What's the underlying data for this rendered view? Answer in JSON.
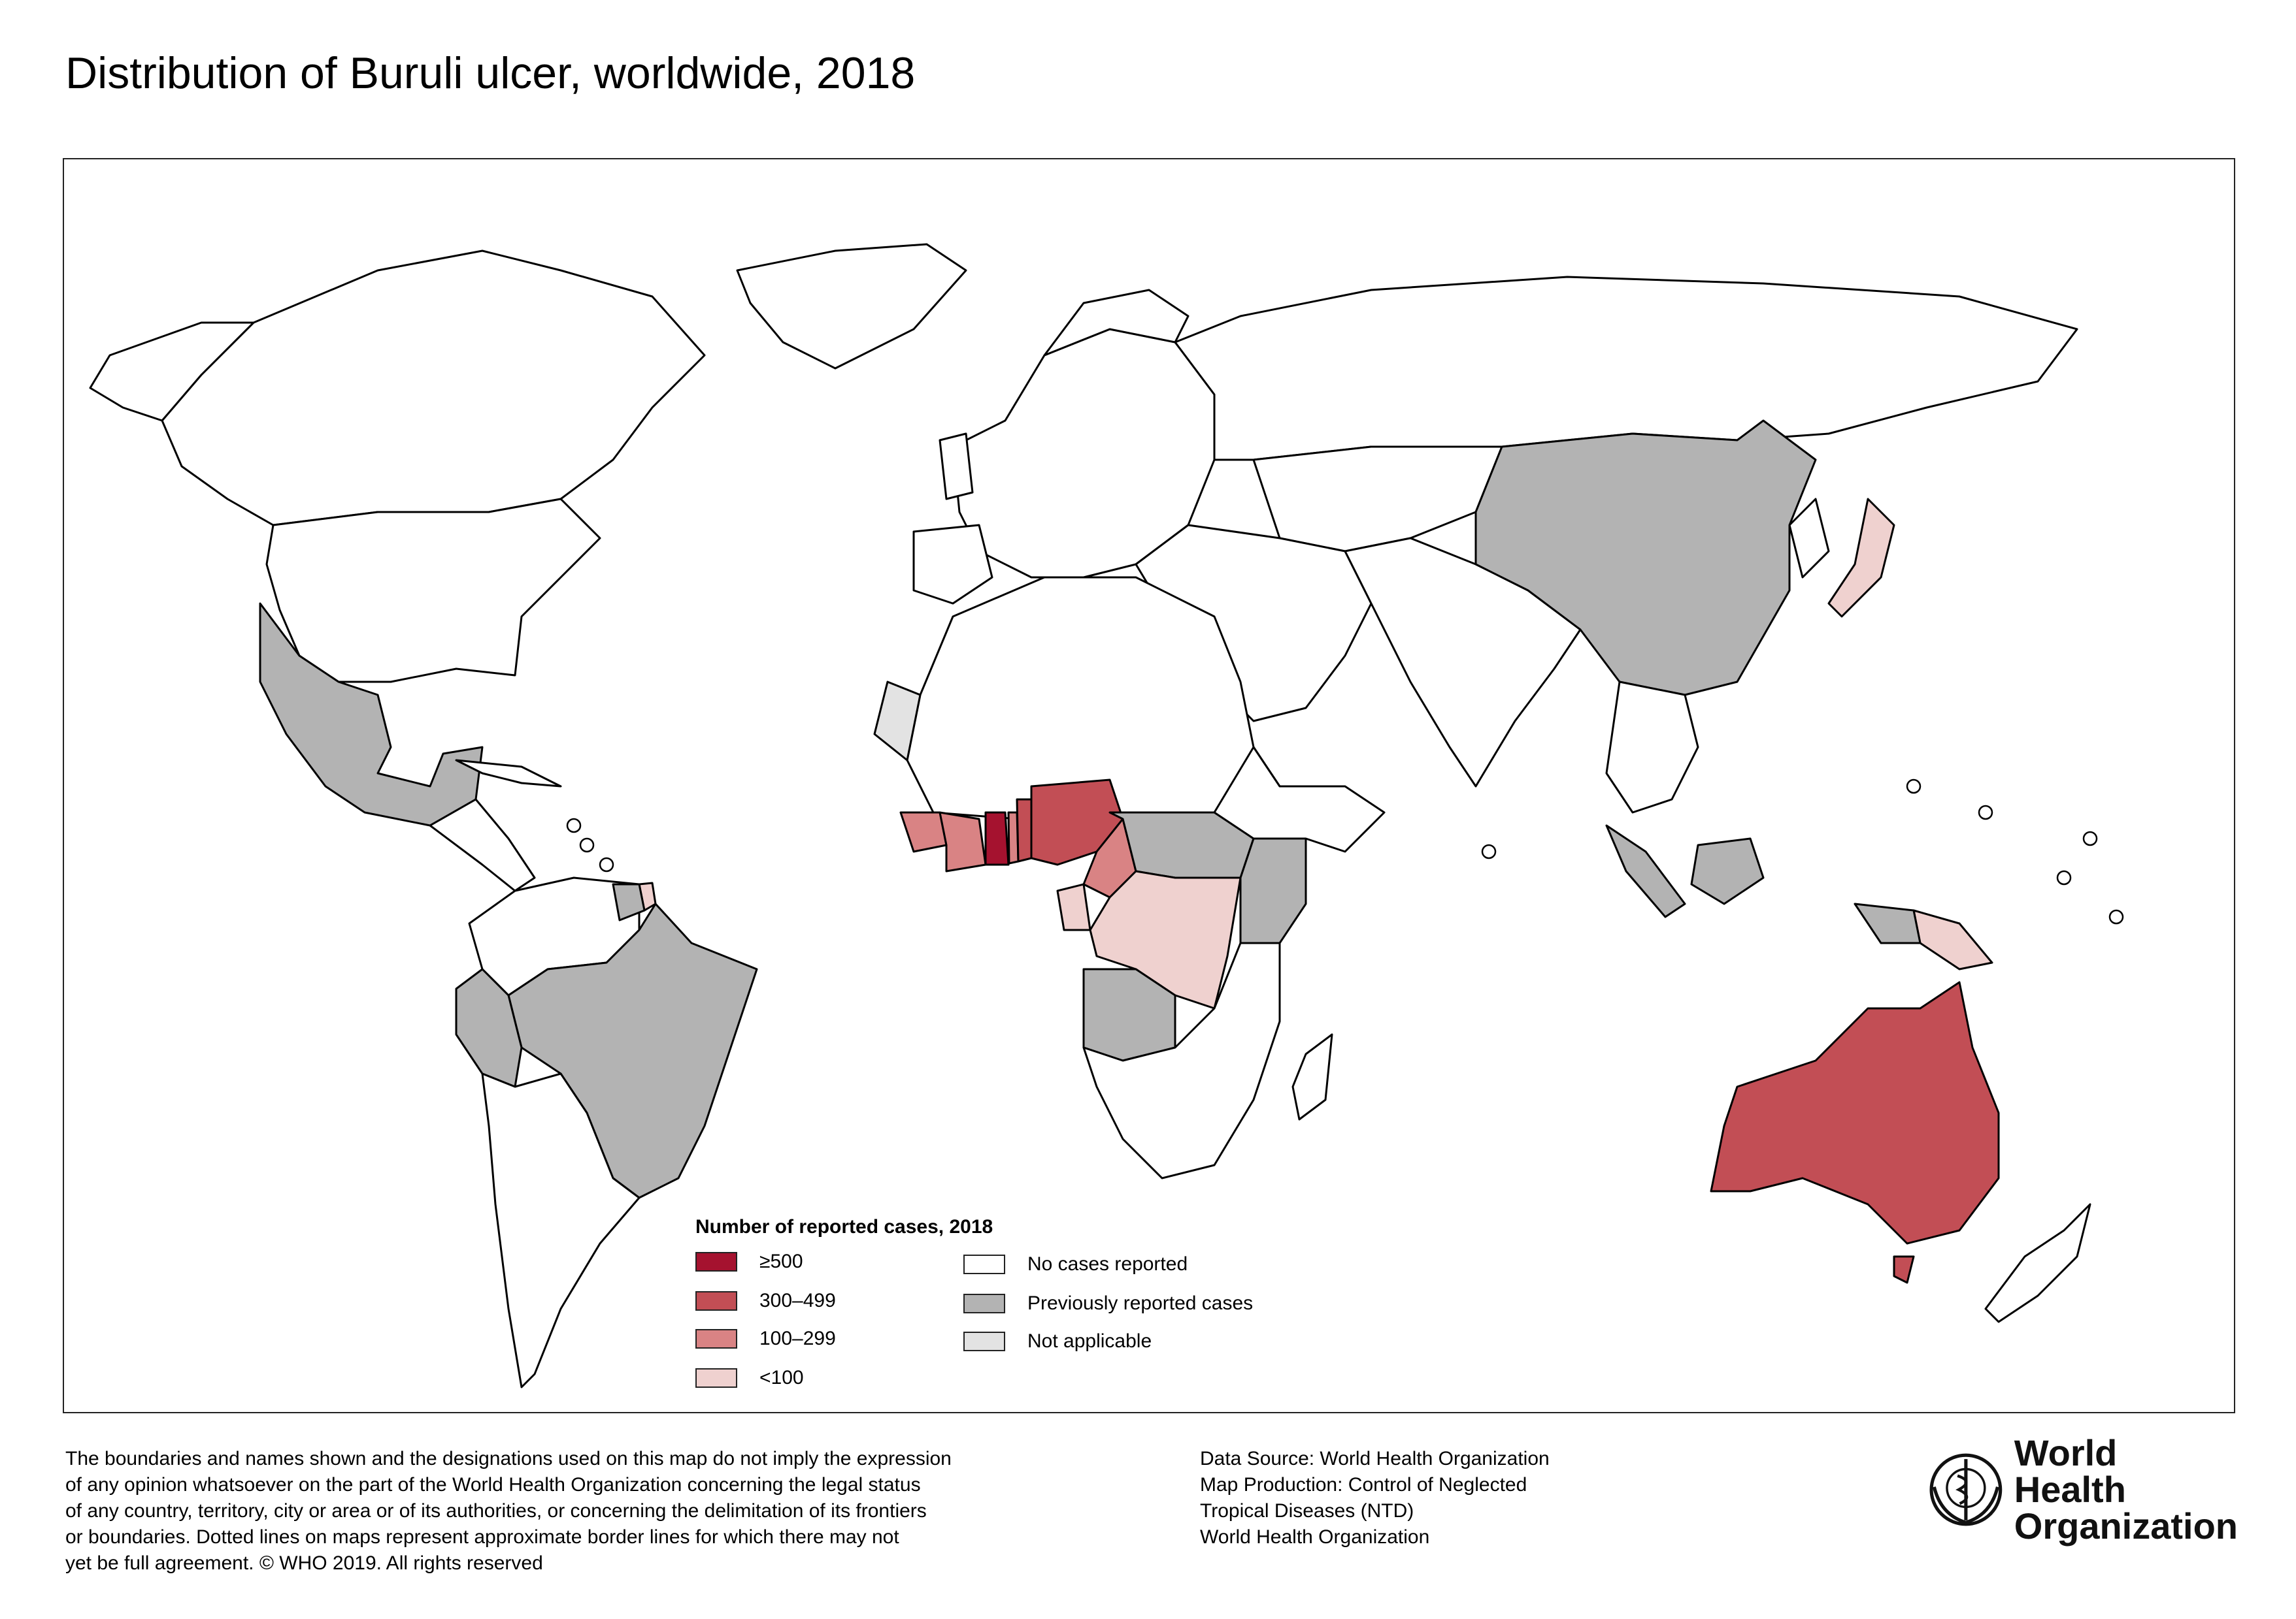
{
  "title": "Distribution of Buruli ulcer, worldwide, 2018",
  "colors": {
    "ge500": "#a5122f",
    "c300_499": "#c24e55",
    "c100_299": "#d98384",
    "lt100": "#efd1cf",
    "none": "#ffffff",
    "previous": "#b3b3b3",
    "not_applicable": "#e3e3e3"
  },
  "legend": {
    "title": "Number of reported cases, 2018",
    "items": [
      {
        "label": "≥500",
        "color": "#a5122f"
      },
      {
        "label": "300–499",
        "color": "#c24e55"
      },
      {
        "label": "100–299",
        "color": "#d98384"
      },
      {
        "label": "<100",
        "color": "#efd1cf"
      },
      {
        "label": "No cases reported",
        "color": "#ffffff"
      },
      {
        "label": "Previously reported cases",
        "color": "#b3b3b3"
      },
      {
        "label": "Not applicable",
        "color": "#e3e3e3"
      }
    ]
  },
  "disclaimer": [
    "The boundaries and names shown and the designations used on this map do not imply the expression",
    "of any opinion whatsoever on the part of the World Health Organization concerning the legal status",
    "of any country, territory, city or area or of its authorities, or concerning the delimitation of its frontiers",
    "or boundaries. Dotted lines on maps represent approximate border lines for which there may not",
    "yet be full agreement. © WHO 2019. All rights reserved"
  ],
  "source": [
    "Data Source: World Health Organization",
    "Map Production: Control of Neglected",
    "Tropical Diseases (NTD)",
    "World Health Organization"
  ],
  "logo": {
    "line1": "World Health",
    "line2": "Organization"
  },
  "map": {
    "regions": [
      {
        "name": "Australia",
        "category": "300–499"
      },
      {
        "name": "Benin",
        "category": "300–499"
      },
      {
        "name": "Nigeria",
        "category": "300–499"
      },
      {
        "name": "Ghana",
        "category": "≥500"
      },
      {
        "name": "Côte d'Ivoire",
        "category": "100–299"
      },
      {
        "name": "Cameroon",
        "category": "100–299"
      },
      {
        "name": "Liberia",
        "category": "100–299"
      },
      {
        "name": "Guinea",
        "category": "100–299"
      },
      {
        "name": "Togo",
        "category": "100–299"
      },
      {
        "name": "Sierra Leone",
        "category": "100–299"
      },
      {
        "name": "Democratic Republic of the Congo",
        "category": "<100"
      },
      {
        "name": "Gabon",
        "category": "<100"
      },
      {
        "name": "Japan",
        "category": "<100"
      },
      {
        "name": "Papua New Guinea",
        "category": "<100"
      },
      {
        "name": "French Guiana",
        "category": "<100"
      },
      {
        "name": "Brazil",
        "category": "Previously reported cases"
      },
      {
        "name": "Mexico",
        "category": "Previously reported cases"
      },
      {
        "name": "China",
        "category": "Previously reported cases"
      },
      {
        "name": "Angola",
        "category": "Previously reported cases"
      },
      {
        "name": "Kenya",
        "category": "Previously reported cases"
      },
      {
        "name": "Western Sahara",
        "category": "Not applicable"
      }
    ]
  }
}
